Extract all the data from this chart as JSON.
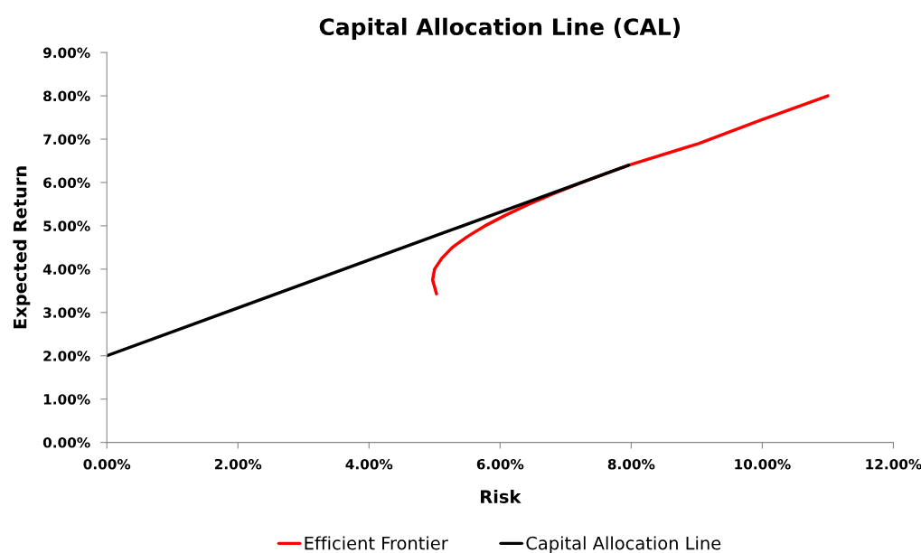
{
  "chart_data": {
    "type": "line",
    "title": "Capital Allocation Line (CAL)",
    "xlabel": "Risk",
    "ylabel": "Expected Return",
    "series": [
      {
        "name": "Efficient Frontier",
        "color": "#ff0000",
        "x": [
          5.03,
          4.97,
          5.0,
          5.11,
          5.27,
          5.5,
          5.77,
          6.09,
          6.44,
          6.83,
          7.25,
          7.6,
          7.96,
          9.03,
          9.96,
          11.0
        ],
        "values": [
          3.43,
          3.75,
          4.0,
          4.25,
          4.5,
          4.75,
          5.0,
          5.25,
          5.5,
          5.75,
          6.0,
          6.2,
          6.4,
          6.9,
          7.43,
          8.0
        ]
      },
      {
        "name": "Capital Allocation Line",
        "color": "#000000",
        "x": [
          0.0,
          7.96
        ],
        "values": [
          2.0,
          6.4
        ]
      }
    ],
    "xlim": [
      0,
      12
    ],
    "ylim": [
      0,
      9
    ],
    "xticks": [
      {
        "value": 0,
        "label": "0.00%"
      },
      {
        "value": 2,
        "label": "2.00%"
      },
      {
        "value": 4,
        "label": "4.00%"
      },
      {
        "value": 6,
        "label": "6.00%"
      },
      {
        "value": 8,
        "label": "8.00%"
      },
      {
        "value": 10,
        "label": "10.00%"
      },
      {
        "value": 12,
        "label": "12.00%"
      }
    ],
    "yticks": [
      {
        "value": 0,
        "label": "0.00%"
      },
      {
        "value": 1,
        "label": "1.00%"
      },
      {
        "value": 2,
        "label": "2.00%"
      },
      {
        "value": 3,
        "label": "3.00%"
      },
      {
        "value": 4,
        "label": "4.00%"
      },
      {
        "value": 5,
        "label": "5.00%"
      },
      {
        "value": 6,
        "label": "6.00%"
      },
      {
        "value": 7,
        "label": "7.00%"
      },
      {
        "value": 8,
        "label": "8.00%"
      },
      {
        "value": 9,
        "label": "9.00%"
      }
    ],
    "legend": "bottom",
    "grid": false,
    "marker": "none",
    "line_style": "solid"
  }
}
